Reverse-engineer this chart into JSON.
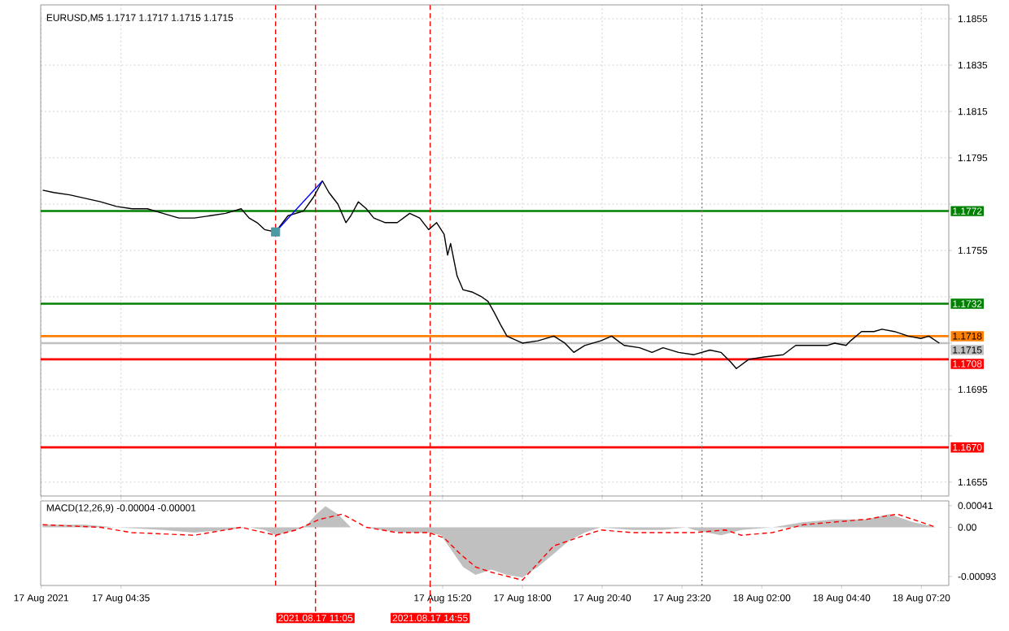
{
  "chart_data": [
    {
      "type": "line",
      "title": "EURUSD,M5 1.1717 1.1717 1.1715 1.1715",
      "xlim": [
        "2021-08-17T01:54",
        "2021-08-18T08:15"
      ],
      "ylim": [
        1.1649,
        1.1861
      ],
      "grid": true,
      "tick_labels": "y",
      "xticks": [
        {
          "value": "2021-08-17T01:55",
          "label": null
        },
        {
          "value": "2021-08-17T04:35",
          "label": null
        },
        {
          "value": "2021-08-17T15:20",
          "label": null
        },
        {
          "value": "2021-08-17T18:00",
          "label": null
        },
        {
          "value": "2021-08-17T20:40",
          "label": null
        },
        {
          "value": "2021-08-17T23:20",
          "label": null
        },
        {
          "value": "2021-08-18T02:00",
          "label": null
        },
        {
          "value": "2021-08-18T04:40",
          "label": null
        },
        {
          "value": "2021-08-18T07:20",
          "label": null
        }
      ],
      "yticks": [
        1.1855,
        1.1835,
        1.1815,
        1.1795,
        {
          "value": 1.1775,
          "label": null
        },
        1.1755,
        {
          "value": 1.1735,
          "label": null
        },
        {
          "value": 1.1715,
          "label": null
        },
        1.1695,
        {
          "value": 1.1675,
          "label": null
        },
        1.1655
      ],
      "series": [
        {
          "color": "#000000",
          "x": [
            "2021-08-17T01:58",
            "2021-08-17T02:20",
            "2021-08-17T02:52",
            "2021-08-17T03:54",
            "2021-08-17T04:26",
            "2021-08-17T04:57",
            "2021-08-17T05:28",
            "2021-08-17T05:59",
            "2021-08-17T06:31",
            "2021-08-17T07:02",
            "2021-08-17T07:34",
            "2021-08-17T08:05",
            "2021-08-17T08:36",
            "2021-08-17T08:52",
            "2021-08-17T09:08",
            "2021-08-17T09:23",
            "2021-08-17T09:45",
            "2021-08-17T10:10",
            "2021-08-17T10:41",
            "2021-08-17T11:01",
            "2021-08-17T11:19",
            "2021-08-17T11:32",
            "2021-08-17T11:50",
            "2021-08-17T12:06",
            "2021-08-17T12:16",
            "2021-08-17T12:31",
            "2021-08-17T12:47",
            "2021-08-17T13:02",
            "2021-08-17T13:25",
            "2021-08-17T13:49",
            "2021-08-17T14:14",
            "2021-08-17T14:34",
            "2021-08-17T14:52",
            "2021-08-17T15:08",
            "2021-08-17T15:23",
            "2021-08-17T15:30",
            "2021-08-17T15:36",
            "2021-08-17T15:49",
            "2021-08-17T16:01",
            "2021-08-17T16:20",
            "2021-08-17T16:38",
            "2021-08-17T16:51",
            "2021-08-17T17:04",
            "2021-08-17T17:16",
            "2021-08-17T17:29",
            "2021-08-17T18:00",
            "2021-08-17T18:31",
            "2021-08-17T19:03",
            "2021-08-17T19:25",
            "2021-08-17T19:43",
            "2021-08-17T20:05",
            "2021-08-17T20:37",
            "2021-08-17T20:59",
            "2021-08-17T21:24",
            "2021-08-17T21:55",
            "2021-08-17T22:20",
            "2021-08-17T22:42",
            "2021-08-17T23:13",
            "2021-08-17T23:44",
            "2021-08-18T00:16",
            "2021-08-18T00:38",
            "2021-08-18T00:57",
            "2021-08-18T01:09",
            "2021-08-18T01:34",
            "2021-08-18T02:05",
            "2021-08-18T02:43",
            "2021-08-18T03:08",
            "2021-08-18T03:24",
            "2021-08-18T03:46",
            "2021-08-18T04:11",
            "2021-08-18T04:26",
            "2021-08-18T04:49",
            "2021-08-18T04:58",
            "2021-08-18T05:20",
            "2021-08-18T05:45",
            "2021-08-18T06:01",
            "2021-08-18T06:26",
            "2021-08-18T06:54",
            "2021-08-18T07:19",
            "2021-08-18T07:35",
            "2021-08-18T07:56"
          ],
          "values": [
            1.1781,
            1.178,
            1.1779,
            1.1776,
            1.1774,
            1.1773,
            1.1773,
            1.1771,
            1.1769,
            1.1769,
            1.177,
            1.1771,
            1.1773,
            1.1769,
            1.1767,
            1.1764,
            1.1763,
            1.177,
            1.1772,
            1.1778,
            1.1785,
            1.178,
            1.1775,
            1.1767,
            1.177,
            1.1776,
            1.1773,
            1.1769,
            1.1767,
            1.1767,
            1.1771,
            1.1769,
            1.1764,
            1.1767,
            1.1762,
            1.1753,
            1.1758,
            1.1744,
            1.1738,
            1.1737,
            1.1735,
            1.1733,
            1.1728,
            1.1723,
            1.1718,
            1.1715,
            1.1716,
            1.1718,
            1.1715,
            1.1711,
            1.1714,
            1.1716,
            1.1718,
            1.1714,
            1.1713,
            1.1711,
            1.1713,
            1.1711,
            1.171,
            1.1712,
            1.1711,
            1.1707,
            1.1704,
            1.1708,
            1.1709,
            1.171,
            1.1714,
            1.1714,
            1.1714,
            1.1714,
            1.1715,
            1.1714,
            1.1716,
            1.172,
            1.172,
            1.1721,
            1.172,
            1.1718,
            1.1717,
            1.1718,
            1.1715
          ]
        },
        {
          "color": "#0000ff",
          "x": [
            "2021-08-17T09:45",
            "2021-08-17T11:19"
          ],
          "values": [
            1.1763,
            1.1785
          ]
        },
        {
          "type": "scatter",
          "marker": "square",
          "color": "#4a9aa5",
          "x": [
            "2021-08-17T09:45"
          ],
          "values": [
            1.1763
          ]
        }
      ],
      "ref_lines": [
        {
          "axis": "y",
          "value": 1.1772,
          "label": "1.1772",
          "color": "#008000"
        },
        {
          "axis": "y",
          "value": 1.1732,
          "label": "1.1732",
          "color": "#008000"
        },
        {
          "axis": "y",
          "value": 1.1718,
          "label": "1.1718",
          "color": "#ff8000"
        },
        {
          "axis": "y",
          "value": 1.1715,
          "label": "1.1715",
          "color": "#c0c0c0"
        },
        {
          "axis": "y",
          "value": 1.1708,
          "label": "1.1708",
          "color": "#ff0000"
        },
        {
          "axis": "y",
          "value": 1.167,
          "label": "1.1670",
          "color": "#ff0000"
        },
        {
          "axis": "x",
          "value": "2021-08-17T09:45",
          "color": "#ff0000",
          "line_style": "dashed"
        },
        {
          "axis": "x",
          "value": "2021-08-17T11:05",
          "color": "#ff0000",
          "line_style": "dashed"
        },
        {
          "axis": "x",
          "value": "2021-08-17T14:55",
          "color": "#ff0000",
          "line_style": "dashed"
        },
        {
          "axis": "x",
          "value": "2021-08-18T00:00",
          "color": "#808080",
          "line_style": "dotted"
        }
      ]
    },
    {
      "type": "area",
      "title": "MACD(12,26,9) -0.00004 -0.00001",
      "xlim": [
        "2021-08-17T01:54",
        "2021-08-18T08:15"
      ],
      "ylim": [
        -0.0011,
        0.0005
      ],
      "xticks": [
        {
          "value": "2021-08-17T01:55",
          "label": "17 Aug 2021"
        },
        {
          "value": "2021-08-17T04:35",
          "label": "17 Aug 04:35"
        },
        {
          "value": "2021-08-17T15:20",
          "label": "17 Aug 15:20"
        },
        {
          "value": "2021-08-17T18:00",
          "label": "17 Aug 18:00"
        },
        {
          "value": "2021-08-17T20:40",
          "label": "17 Aug 20:40"
        },
        {
          "value": "2021-08-17T23:20",
          "label": "17 Aug 23:20"
        },
        {
          "value": "2021-08-18T02:00",
          "label": "18 Aug 02:00"
        },
        {
          "value": "2021-08-18T04:40",
          "label": "18 Aug 04:40"
        },
        {
          "value": "2021-08-18T07:20",
          "label": "18 Aug 07:20"
        }
      ],
      "yticks": [
        0.00041,
        {
          "value": 0,
          "label": "0.00"
        },
        -0.00093
      ],
      "series": [
        {
          "color": "#c0c0c0",
          "x": [
            "2021-08-17T01:58",
            "2021-08-17T03:23",
            "2021-08-17T04:26",
            "2021-08-17T05:59",
            "2021-08-17T07:02",
            "2021-08-17T08:05",
            "2021-08-17T08:52",
            "2021-08-17T09:23",
            "2021-08-17T09:45",
            "2021-08-17T10:26",
            "2021-08-17T10:48",
            "2021-08-17T11:07",
            "2021-08-17T11:25",
            "2021-08-17T11:50",
            "2021-08-17T12:16",
            "2021-08-17T12:47",
            "2021-08-17T13:18",
            "2021-08-17T14:05",
            "2021-08-17T14:52",
            "2021-08-17T15:17",
            "2021-08-17T15:39",
            "2021-08-17T16:01",
            "2021-08-17T16:26",
            "2021-08-17T16:58",
            "2021-08-17T17:29",
            "2021-08-17T18:00",
            "2021-08-17T18:31",
            "2021-08-17T19:03",
            "2021-08-17T19:34",
            "2021-08-17T20:05",
            "2021-08-17T20:37",
            "2021-08-17T21:40",
            "2021-08-17T22:42",
            "2021-08-17T23:29",
            "2021-08-17T23:44",
            "2021-08-18T00:38",
            "2021-08-18T01:19",
            "2021-08-18T02:21",
            "2021-08-18T03:24",
            "2021-08-18T04:26",
            "2021-08-18T05:29",
            "2021-08-18T06:16",
            "2021-08-18T07:03",
            "2021-08-18T07:50"
          ],
          "values": [
            5e-05,
            5e-05,
            0,
            -5e-05,
            -0.0001,
            -5e-05,
            0,
            -5e-05,
            -0.00015,
            -5e-05,
            5e-05,
            0.00025,
            0.0004,
            0.00025,
            0,
            0,
            -5e-05,
            -0.0001,
            -0.0001,
            -0.00015,
            -0.00045,
            -0.00075,
            -0.0009,
            -0.0008,
            -0.0009,
            -0.00095,
            -0.00075,
            -0.0005,
            -0.00025,
            -0.0001,
            0,
            -5e-05,
            -5e-05,
            0,
            -5e-05,
            -0.00015,
            -5e-05,
            0,
            0.0001,
            0.00015,
            0.00015,
            0.00025,
            0.0001,
            0
          ]
        },
        {
          "type": "line",
          "line_style": "dashed",
          "color": "#ff0000",
          "x": [
            "2021-08-17T01:58",
            "2021-08-17T03:54",
            "2021-08-17T04:57",
            "2021-08-17T07:02",
            "2021-08-17T08:36",
            "2021-08-17T09:45",
            "2021-08-17T10:26",
            "2021-08-17T11:13",
            "2021-08-17T11:59",
            "2021-08-17T12:47",
            "2021-08-17T13:49",
            "2021-08-17T14:52",
            "2021-08-17T15:23",
            "2021-08-17T15:55",
            "2021-08-17T16:26",
            "2021-08-17T16:58",
            "2021-08-17T18:00",
            "2021-08-17T19:03",
            "2021-08-17T20:05",
            "2021-08-17T20:37",
            "2021-08-17T21:40",
            "2021-08-17T23:44",
            "2021-08-18T00:47",
            "2021-08-18T01:19",
            "2021-08-18T02:21",
            "2021-08-18T03:24",
            "2021-08-18T04:26",
            "2021-08-18T05:29",
            "2021-08-18T06:32",
            "2021-08-18T07:03",
            "2021-08-18T07:50"
          ],
          "values": [
            5e-05,
            0,
            -0.0001,
            -0.00015,
            0,
            -0.00015,
            -5e-05,
            0.00015,
            0.00025,
            0,
            -0.0001,
            -0.0001,
            -0.0002,
            -0.0005,
            -0.00075,
            -0.00085,
            -0.001,
            -0.00035,
            -0.00015,
            -5e-05,
            -0.0001,
            -0.0001,
            -5e-05,
            -0.00015,
            -0.0001,
            5e-05,
            0.0001,
            0.00015,
            0.00025,
            0.00015,
            0
          ]
        }
      ],
      "ref_lines": [
        {
          "axis": "x",
          "value": "2021-08-17T09:45",
          "color": "#ff0000",
          "line_style": "dashed"
        },
        {
          "axis": "x",
          "value": "2021-08-17T11:05",
          "label": "2021.08.17 11:05",
          "color": "#ff0000",
          "line_style": "dashed"
        },
        {
          "axis": "x",
          "value": "2021-08-17T14:55",
          "label": "2021.08.17 14:55",
          "color": "#ff0000",
          "line_style": "dashed"
        },
        {
          "axis": "x",
          "value": "2021-08-18T00:00",
          "color": "#808080",
          "line_style": "dotted"
        }
      ]
    }
  ]
}
